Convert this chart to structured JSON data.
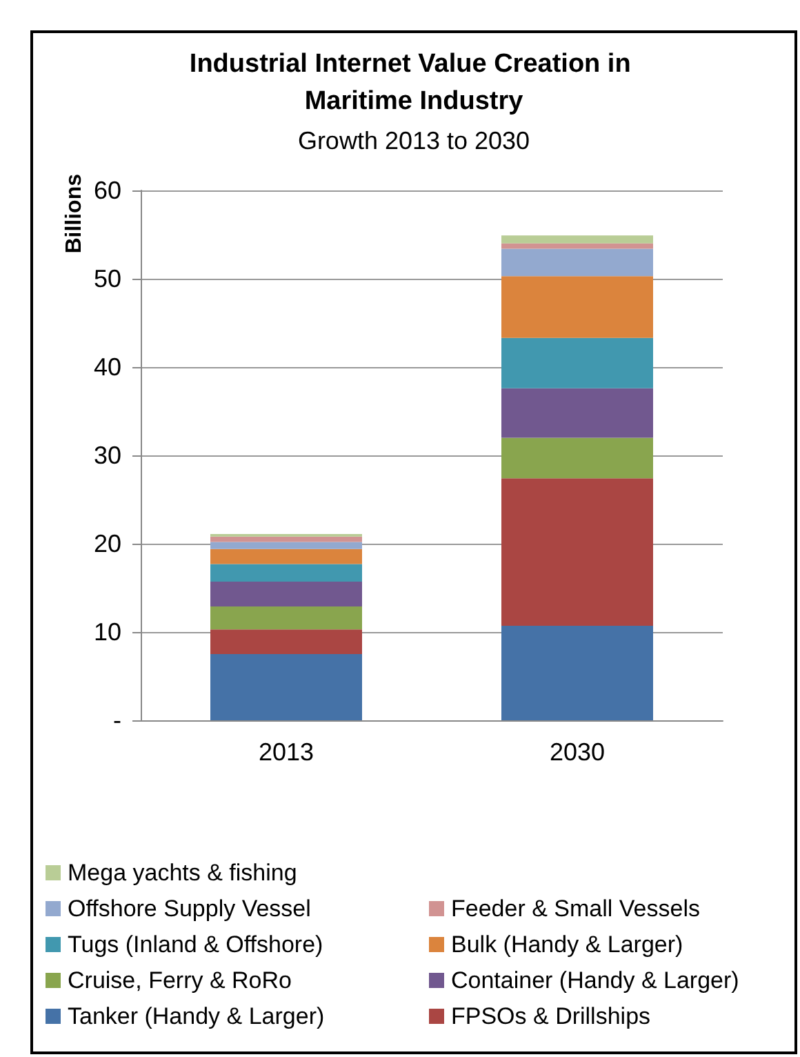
{
  "chart_data": {
    "type": "bar",
    "title": "Industrial Internet Value Creation in Maritime Industry",
    "subtitle": "Growth 2013 to 2030",
    "ylabel": "Billions",
    "categories": [
      "2013",
      "2030"
    ],
    "stacked": true,
    "ylim": [
      0,
      60
    ],
    "yticks": [
      {
        "value": 0,
        "label": "-"
      },
      10,
      20,
      30,
      40,
      50,
      60
    ],
    "grid": "y",
    "legend": "bottom",
    "series": [
      {
        "name": "Tanker (Handy & Larger)",
        "color": "#4572a7",
        "values": [
          7.5,
          10.7
        ]
      },
      {
        "name": "FPSOs & Drillships",
        "color": "#aa4643",
        "values": [
          2.8,
          16.7
        ]
      },
      {
        "name": "Cruise, Ferry & RoRo",
        "color": "#89a54e",
        "values": [
          2.6,
          4.6
        ]
      },
      {
        "name": "Container (Handy & Larger)",
        "color": "#71588f",
        "values": [
          2.8,
          5.6
        ]
      },
      {
        "name": "Tugs (Inland & Offshore)",
        "color": "#4198af",
        "values": [
          2.0,
          5.7
        ]
      },
      {
        "name": "Bulk (Handy & Larger)",
        "color": "#db843d",
        "values": [
          1.7,
          7.0
        ]
      },
      {
        "name": "Offshore Supply Vessel",
        "color": "#93a9cf",
        "values": [
          0.8,
          3.1
        ]
      },
      {
        "name": "Feeder & Small Vessels",
        "color": "#d19392",
        "values": [
          0.6,
          0.6
        ]
      },
      {
        "name": "Mega yachts & fishing",
        "color": "#b9cd96",
        "values": [
          0.3,
          0.9
        ]
      }
    ]
  }
}
